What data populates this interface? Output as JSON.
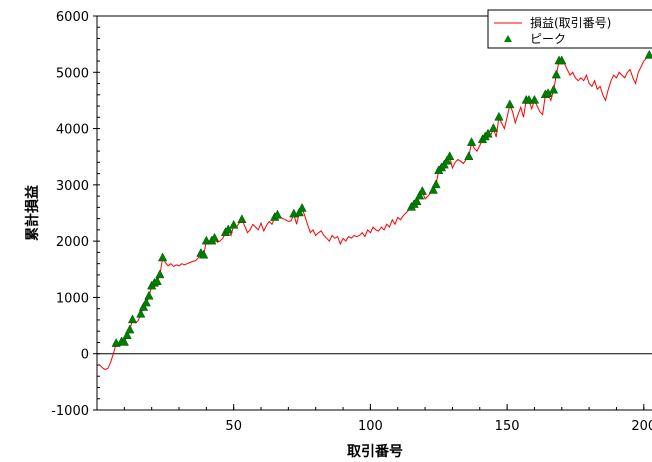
{
  "chart_data": {
    "type": "line",
    "xlabel": "取引番号",
    "ylabel": "累計損益",
    "xlim": [
      0,
      203
    ],
    "ylim": [
      -1000,
      6000
    ],
    "x_ticks": [
      50,
      100,
      150,
      200
    ],
    "y_ticks": [
      -1000,
      0,
      1000,
      2000,
      3000,
      4000,
      5000,
      6000
    ],
    "x_tick_labels": [
      "50",
      "100",
      "150",
      "200"
    ],
    "y_tick_labels": [
      "-1000",
      "0",
      "1000",
      "2000",
      "3000",
      "4000",
      "5000",
      "6000"
    ],
    "grid": false,
    "legend_position": "top-right",
    "series": [
      {
        "name": "損益(取引番号)",
        "color": "#ff0000",
        "points": [
          [
            1,
            -200
          ],
          [
            2,
            -250
          ],
          [
            3,
            -280
          ],
          [
            4,
            -260
          ],
          [
            5,
            -150
          ],
          [
            6,
            0
          ],
          [
            7,
            180
          ],
          [
            8,
            150
          ],
          [
            9,
            210
          ],
          [
            10,
            200
          ],
          [
            11,
            320
          ],
          [
            12,
            420
          ],
          [
            13,
            600
          ],
          [
            14,
            550
          ],
          [
            15,
            580
          ],
          [
            16,
            700
          ],
          [
            17,
            820
          ],
          [
            18,
            900
          ],
          [
            19,
            1020
          ],
          [
            20,
            1200
          ],
          [
            21,
            1250
          ],
          [
            22,
            1280
          ],
          [
            23,
            1400
          ],
          [
            24,
            1700
          ],
          [
            25,
            1620
          ],
          [
            26,
            1560
          ],
          [
            27,
            1600
          ],
          [
            28,
            1550
          ],
          [
            29,
            1580
          ],
          [
            30,
            1560
          ],
          [
            31,
            1600
          ],
          [
            32,
            1580
          ],
          [
            33,
            1600
          ],
          [
            34,
            1620
          ],
          [
            35,
            1640
          ],
          [
            36,
            1650
          ],
          [
            37,
            1700
          ],
          [
            38,
            1780
          ],
          [
            39,
            1750
          ],
          [
            40,
            2000
          ],
          [
            41,
            1950
          ],
          [
            42,
            2000
          ],
          [
            43,
            2050
          ],
          [
            44,
            1980
          ],
          [
            45,
            2000
          ],
          [
            46,
            2050
          ],
          [
            47,
            2150
          ],
          [
            48,
            2200
          ],
          [
            49,
            2100
          ],
          [
            50,
            2280
          ],
          [
            51,
            2250
          ],
          [
            52,
            2320
          ],
          [
            53,
            2380
          ],
          [
            54,
            2280
          ],
          [
            55,
            2150
          ],
          [
            56,
            2200
          ],
          [
            57,
            2300
          ],
          [
            58,
            2250
          ],
          [
            59,
            2200
          ],
          [
            60,
            2320
          ],
          [
            61,
            2180
          ],
          [
            62,
            2280
          ],
          [
            63,
            2350
          ],
          [
            64,
            2300
          ],
          [
            65,
            2420
          ],
          [
            66,
            2460
          ],
          [
            67,
            2430
          ],
          [
            68,
            2400
          ],
          [
            69,
            2380
          ],
          [
            70,
            2350
          ],
          [
            71,
            2360
          ],
          [
            72,
            2480
          ],
          [
            73,
            2300
          ],
          [
            74,
            2500
          ],
          [
            75,
            2580
          ],
          [
            76,
            2450
          ],
          [
            77,
            2300
          ],
          [
            78,
            2150
          ],
          [
            79,
            2200
          ],
          [
            80,
            2100
          ],
          [
            81,
            2150
          ],
          [
            82,
            2180
          ],
          [
            83,
            2100
          ],
          [
            84,
            2050
          ],
          [
            85,
            2000
          ],
          [
            86,
            2100
          ],
          [
            87,
            2050
          ],
          [
            88,
            2080
          ],
          [
            89,
            1950
          ],
          [
            90,
            2050
          ],
          [
            91,
            2000
          ],
          [
            92,
            2080
          ],
          [
            93,
            2050
          ],
          [
            94,
            2100
          ],
          [
            95,
            2080
          ],
          [
            96,
            2100
          ],
          [
            97,
            2150
          ],
          [
            98,
            2080
          ],
          [
            99,
            2200
          ],
          [
            100,
            2150
          ],
          [
            101,
            2250
          ],
          [
            102,
            2200
          ],
          [
            103,
            2180
          ],
          [
            104,
            2250
          ],
          [
            105,
            2200
          ],
          [
            106,
            2300
          ],
          [
            107,
            2250
          ],
          [
            108,
            2380
          ],
          [
            109,
            2300
          ],
          [
            110,
            2420
          ],
          [
            111,
            2380
          ],
          [
            112,
            2450
          ],
          [
            113,
            2500
          ],
          [
            114,
            2550
          ],
          [
            115,
            2600
          ],
          [
            116,
            2650
          ],
          [
            117,
            2700
          ],
          [
            118,
            2800
          ],
          [
            119,
            2880
          ],
          [
            120,
            2750
          ],
          [
            121,
            2800
          ],
          [
            122,
            2850
          ],
          [
            123,
            2900
          ],
          [
            124,
            3000
          ],
          [
            125,
            3250
          ],
          [
            126,
            3300
          ],
          [
            127,
            3350
          ],
          [
            128,
            3420
          ],
          [
            129,
            3500
          ],
          [
            130,
            3300
          ],
          [
            131,
            3400
          ],
          [
            132,
            3450
          ],
          [
            133,
            3420
          ],
          [
            134,
            3380
          ],
          [
            135,
            3450
          ],
          [
            136,
            3500
          ],
          [
            137,
            3750
          ],
          [
            138,
            3650
          ],
          [
            139,
            3600
          ],
          [
            140,
            3700
          ],
          [
            141,
            3800
          ],
          [
            142,
            3850
          ],
          [
            143,
            3900
          ],
          [
            144,
            3880
          ],
          [
            145,
            4000
          ],
          [
            146,
            3850
          ],
          [
            147,
            4200
          ],
          [
            148,
            4100
          ],
          [
            149,
            4000
          ],
          [
            150,
            4200
          ],
          [
            151,
            4420
          ],
          [
            152,
            4300
          ],
          [
            153,
            4100
          ],
          [
            154,
            4250
          ],
          [
            155,
            4380
          ],
          [
            156,
            4200
          ],
          [
            157,
            4500
          ],
          [
            158,
            4500
          ],
          [
            159,
            4350
          ],
          [
            160,
            4500
          ],
          [
            161,
            4400
          ],
          [
            162,
            4300
          ],
          [
            163,
            4250
          ],
          [
            164,
            4600
          ],
          [
            165,
            4620
          ],
          [
            166,
            4500
          ],
          [
            167,
            4680
          ],
          [
            168,
            4950
          ],
          [
            169,
            5200
          ],
          [
            170,
            5200
          ],
          [
            171,
            5150
          ],
          [
            172,
            5050
          ],
          [
            173,
            4950
          ],
          [
            174,
            5000
          ],
          [
            175,
            4900
          ],
          [
            176,
            4850
          ],
          [
            177,
            4900
          ],
          [
            178,
            4850
          ],
          [
            179,
            4950
          ],
          [
            180,
            4800
          ],
          [
            181,
            4750
          ],
          [
            182,
            4850
          ],
          [
            183,
            4700
          ],
          [
            184,
            4750
          ],
          [
            185,
            4600
          ],
          [
            186,
            4500
          ],
          [
            187,
            4700
          ],
          [
            188,
            4850
          ],
          [
            189,
            4950
          ],
          [
            190,
            4900
          ],
          [
            191,
            5000
          ],
          [
            192,
            4950
          ],
          [
            193,
            4900
          ],
          [
            194,
            5000
          ],
          [
            195,
            5050
          ],
          [
            196,
            4900
          ],
          [
            197,
            4800
          ],
          [
            198,
            5000
          ],
          [
            199,
            5100
          ],
          [
            200,
            5200
          ],
          [
            201,
            5250
          ],
          [
            202,
            5300
          ],
          [
            203,
            5250
          ]
        ]
      },
      {
        "name": "ピーク",
        "color": "#008000",
        "marker": "triangle",
        "points": [
          [
            7,
            180
          ],
          [
            9,
            210
          ],
          [
            10,
            200
          ],
          [
            11,
            320
          ],
          [
            12,
            420
          ],
          [
            13,
            600
          ],
          [
            16,
            700
          ],
          [
            17,
            820
          ],
          [
            18,
            900
          ],
          [
            19,
            1020
          ],
          [
            20,
            1200
          ],
          [
            21,
            1250
          ],
          [
            22,
            1280
          ],
          [
            23,
            1400
          ],
          [
            24,
            1700
          ],
          [
            38,
            1780
          ],
          [
            39,
            1750
          ],
          [
            40,
            2000
          ],
          [
            42,
            2000
          ],
          [
            43,
            2050
          ],
          [
            47,
            2150
          ],
          [
            48,
            2200
          ],
          [
            50,
            2280
          ],
          [
            53,
            2380
          ],
          [
            65,
            2420
          ],
          [
            66,
            2460
          ],
          [
            72,
            2480
          ],
          [
            74,
            2500
          ],
          [
            75,
            2580
          ],
          [
            115,
            2600
          ],
          [
            116,
            2650
          ],
          [
            117,
            2700
          ],
          [
            118,
            2800
          ],
          [
            119,
            2880
          ],
          [
            123,
            2900
          ],
          [
            124,
            3000
          ],
          [
            125,
            3250
          ],
          [
            126,
            3300
          ],
          [
            127,
            3350
          ],
          [
            128,
            3420
          ],
          [
            129,
            3500
          ],
          [
            136,
            3500
          ],
          [
            137,
            3750
          ],
          [
            141,
            3800
          ],
          [
            142,
            3850
          ],
          [
            143,
            3900
          ],
          [
            145,
            4000
          ],
          [
            147,
            4200
          ],
          [
            151,
            4420
          ],
          [
            157,
            4500
          ],
          [
            158,
            4500
          ],
          [
            160,
            4500
          ],
          [
            164,
            4600
          ],
          [
            165,
            4620
          ],
          [
            167,
            4680
          ],
          [
            168,
            4950
          ],
          [
            169,
            5200
          ],
          [
            170,
            5200
          ],
          [
            202,
            5300
          ]
        ]
      }
    ]
  }
}
